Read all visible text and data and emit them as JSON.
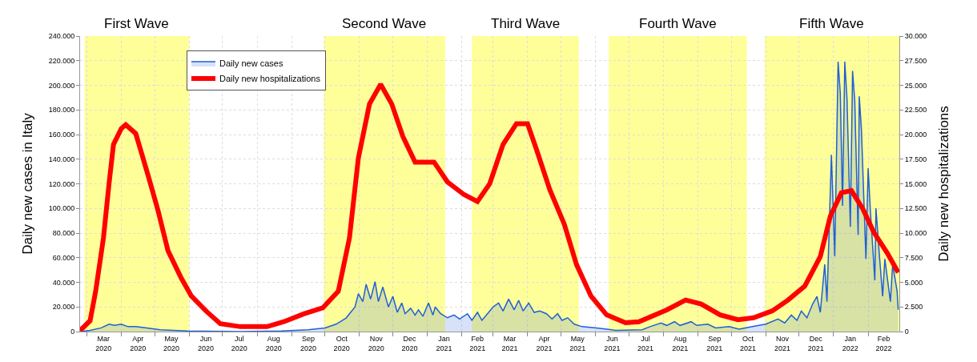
{
  "chart_data": {
    "type": "line",
    "ylabel": "Daily new cases in Italy",
    "y2label": "Daily new hospitalizations",
    "xlim": [
      "2020-02-24",
      "2022-03-01"
    ],
    "xticks": [
      {
        "value": "2020-03-01",
        "label": null
      },
      {
        "value": "2020-03-16",
        "label": "Mar\n2020"
      },
      {
        "value": "2020-04-01",
        "label": null
      },
      {
        "value": "2020-04-16",
        "label": "Apr\n2020"
      },
      {
        "value": "2020-05-01",
        "label": null
      },
      {
        "value": "2020-05-16",
        "label": "May\n2020"
      },
      {
        "value": "2020-06-01",
        "label": null
      },
      {
        "value": "2020-06-16",
        "label": "Jun\n2020"
      },
      {
        "value": "2020-07-01",
        "label": null
      },
      {
        "value": "2020-07-16",
        "label": "Jul\n2020"
      },
      {
        "value": "2020-08-01",
        "label": null
      },
      {
        "value": "2020-08-16",
        "label": "Aug\n2020"
      },
      {
        "value": "2020-09-01",
        "label": null
      },
      {
        "value": "2020-09-16",
        "label": "Sep\n2020"
      },
      {
        "value": "2020-10-01",
        "label": null
      },
      {
        "value": "2020-10-16",
        "label": "Oct\n2020"
      },
      {
        "value": "2020-11-01",
        "label": null
      },
      {
        "value": "2020-11-16",
        "label": "Nov\n2020"
      },
      {
        "value": "2020-12-01",
        "label": null
      },
      {
        "value": "2020-12-16",
        "label": "Dec\n2020"
      },
      {
        "value": "2021-01-01",
        "label": null
      },
      {
        "value": "2021-01-16",
        "label": "Jan\n2021"
      },
      {
        "value": "2021-02-01",
        "label": null
      },
      {
        "value": "2021-02-15",
        "label": "Feb\n2021"
      },
      {
        "value": "2021-03-01",
        "label": null
      },
      {
        "value": "2021-03-16",
        "label": "Mar\n2021"
      },
      {
        "value": "2021-04-01",
        "label": null
      },
      {
        "value": "2021-04-16",
        "label": "Apr\n2021"
      },
      {
        "value": "2021-05-01",
        "label": null
      },
      {
        "value": "2021-05-16",
        "label": "May\n2021"
      },
      {
        "value": "2021-06-01",
        "label": null
      },
      {
        "value": "2021-06-16",
        "label": "Jun\n2021"
      },
      {
        "value": "2021-07-01",
        "label": null
      },
      {
        "value": "2021-07-16",
        "label": "Jul\n2021"
      },
      {
        "value": "2021-08-01",
        "label": null
      },
      {
        "value": "2021-08-16",
        "label": "Aug\n2021"
      },
      {
        "value": "2021-09-01",
        "label": null
      },
      {
        "value": "2021-09-16",
        "label": "Sep\n2021"
      },
      {
        "value": "2021-10-01",
        "label": null
      },
      {
        "value": "2021-10-16",
        "label": "Oct\n2021"
      },
      {
        "value": "2021-11-01",
        "label": null
      },
      {
        "value": "2021-11-16",
        "label": "Nov\n2021"
      },
      {
        "value": "2021-12-01",
        "label": null
      },
      {
        "value": "2021-12-16",
        "label": "Dec\n2021"
      },
      {
        "value": "2022-01-01",
        "label": null
      },
      {
        "value": "2022-01-16",
        "label": "Jan\n2022"
      },
      {
        "value": "2022-02-01",
        "label": null
      },
      {
        "value": "2022-02-15",
        "label": "Feb\n2022"
      }
    ],
    "ylim": [
      0,
      240000
    ],
    "yticks": [
      0,
      {
        "value": 20000,
        "label": "20.000"
      },
      {
        "value": 40000,
        "label": "40.000"
      },
      {
        "value": 60000,
        "label": "60.000"
      },
      {
        "value": 80000,
        "label": "80.000"
      },
      {
        "value": 100000,
        "label": "100.000"
      },
      {
        "value": 120000,
        "label": "120.000"
      },
      {
        "value": 140000,
        "label": "140.000"
      },
      {
        "value": 160000,
        "label": "160.000"
      },
      {
        "value": 180000,
        "label": "180.000"
      },
      {
        "value": 200000,
        "label": "200.000"
      },
      {
        "value": 220000,
        "label": "220.000"
      },
      {
        "value": 240000,
        "label": "240.000"
      }
    ],
    "y2lim": [
      0,
      30000
    ],
    "y2ticks": [
      0,
      {
        "value": 2500,
        "label": "2.500"
      },
      {
        "value": 5000,
        "label": "5.000"
      },
      {
        "value": 7500,
        "label": "7.500"
      },
      {
        "value": 10000,
        "label": "10.000"
      },
      {
        "value": 12500,
        "label": "12.500"
      },
      {
        "value": 15000,
        "label": "15.000"
      },
      {
        "value": 17500,
        "label": "17.500"
      },
      {
        "value": 20000,
        "label": "20.000"
      },
      {
        "value": 22500,
        "label": "22.500"
      },
      {
        "value": 25000,
        "label": "25.000"
      },
      {
        "value": 27500,
        "label": "27.500"
      },
      {
        "value": 30000,
        "label": "30.000"
      }
    ],
    "grid": true,
    "legend": "top left",
    "marker": "none",
    "line_style": "solid",
    "bands": [
      {
        "axis": "x",
        "from": "2020-02-28",
        "to": "2020-06-01",
        "label": "First Wave",
        "color": "#ffff99"
      },
      {
        "axis": "x",
        "from": "2020-09-30",
        "to": "2021-01-17",
        "label": "Second Wave",
        "color": "#ffff99"
      },
      {
        "axis": "x",
        "from": "2021-02-10",
        "to": "2021-05-17",
        "label": "Third Wave",
        "color": "#ffff99"
      },
      {
        "axis": "x",
        "from": "2021-06-13",
        "to": "2021-10-15",
        "label": "Fourth Wave",
        "color": "#ffff99"
      },
      {
        "axis": "x",
        "from": "2021-10-31",
        "to": "2022-03-01",
        "label": "Fifth Wave",
        "color": "#ffff99"
      }
    ],
    "series": [
      {
        "name": "Daily new cases",
        "type": "area",
        "color": "#1f5fd6",
        "x": [
          "2020-02-24",
          "2020-03-04",
          "2020-03-14",
          "2020-03-21",
          "2020-03-26",
          "2020-04-01",
          "2020-04-07",
          "2020-04-14",
          "2020-04-24",
          "2020-05-06",
          "2020-05-30",
          "2020-07-17",
          "2020-08-23",
          "2020-09-16",
          "2020-10-01",
          "2020-10-11",
          "2020-10-20",
          "2020-10-28",
          "2020-10-31",
          "2020-11-04",
          "2020-11-07",
          "2020-11-11",
          "2020-11-15",
          "2020-11-18",
          "2020-11-22",
          "2020-11-27",
          "2020-12-01",
          "2020-12-05",
          "2020-12-09",
          "2020-12-12",
          "2020-12-17",
          "2020-12-21",
          "2020-12-24",
          "2020-12-28",
          "2021-01-02",
          "2021-01-06",
          "2021-01-08",
          "2021-01-13",
          "2021-01-19",
          "2021-01-25",
          "2021-01-30",
          "2021-02-06",
          "2021-02-10",
          "2021-02-15",
          "2021-02-19",
          "2021-02-24",
          "2021-03-01",
          "2021-03-06",
          "2021-03-10",
          "2021-03-15",
          "2021-03-20",
          "2021-03-24",
          "2021-03-28",
          "2021-04-02",
          "2021-04-07",
          "2021-04-12",
          "2021-04-18",
          "2021-04-23",
          "2021-04-28",
          "2021-05-02",
          "2021-05-07",
          "2021-05-13",
          "2021-05-20",
          "2021-06-02",
          "2021-06-19",
          "2021-07-13",
          "2021-07-20",
          "2021-07-30",
          "2021-08-04",
          "2021-08-11",
          "2021-08-16",
          "2021-08-26",
          "2021-08-31",
          "2021-09-10",
          "2021-09-17",
          "2021-09-29",
          "2021-10-08",
          "2021-10-20",
          "2021-11-01",
          "2021-11-12",
          "2021-11-18",
          "2021-11-24",
          "2021-11-29",
          "2021-12-03",
          "2021-12-08",
          "2021-12-13",
          "2021-12-17",
          "2021-12-20",
          "2021-12-24",
          "2021-12-26",
          "2021-12-30",
          "2022-01-02",
          "2022-01-05",
          "2022-01-07",
          "2022-01-09",
          "2022-01-11",
          "2022-01-13",
          "2022-01-16",
          "2022-01-18",
          "2022-01-20",
          "2022-01-23",
          "2022-01-24",
          "2022-01-26",
          "2022-01-30",
          "2022-02-01",
          "2022-02-03",
          "2022-02-07",
          "2022-02-08",
          "2022-02-11",
          "2022-02-14",
          "2022-02-16",
          "2022-02-21",
          "2022-02-23",
          "2022-02-27",
          "2022-02-28"
        ],
        "values": [
          0,
          1000,
          3000,
          6000,
          5000,
          6000,
          4000,
          4000,
          3000,
          1500,
          500,
          0,
          500,
          1500,
          3000,
          6000,
          11000,
          20000,
          30800,
          24300,
          38400,
          26400,
          40500,
          24300,
          36200,
          20000,
          28600,
          15600,
          23200,
          14500,
          18900,
          13400,
          17700,
          12400,
          23200,
          13400,
          20000,
          14500,
          11200,
          13400,
          10200,
          14500,
          9100,
          15600,
          9100,
          14500,
          20000,
          23200,
          16700,
          26400,
          17700,
          25400,
          16700,
          23200,
          15600,
          16700,
          14500,
          10200,
          14500,
          9100,
          11200,
          6000,
          4000,
          3000,
          1000,
          1500,
          4000,
          7000,
          5000,
          8000,
          5000,
          8000,
          5000,
          6000,
          3000,
          4000,
          2000,
          4000,
          6000,
          10200,
          7000,
          13400,
          9100,
          16700,
          11200,
          22100,
          28600,
          15600,
          54600,
          24300,
          143500,
          61100,
          219200,
          193200,
          102200,
          219200,
          189000,
          85000,
          211700,
          186700,
          78500,
          191100,
          163000,
          59000,
          132600,
          98000,
          41600,
          100100,
          63200,
          28600,
          59000,
          24300,
          54600,
          33000,
          17700
        ]
      },
      {
        "name": "Daily new hospitalizations",
        "axis": "y2",
        "color": "#ff0000",
        "x": [
          "2020-02-24",
          "2020-03-04",
          "2020-03-09",
          "2020-03-16",
          "2020-03-21",
          "2020-03-25",
          "2020-04-01",
          "2020-04-05",
          "2020-04-14",
          "2020-04-19",
          "2020-04-26",
          "2020-05-04",
          "2020-05-13",
          "2020-05-25",
          "2020-06-03",
          "2020-06-17",
          "2020-06-29",
          "2020-07-17",
          "2020-08-10",
          "2020-08-25",
          "2020-09-12",
          "2020-09-29",
          "2020-10-13",
          "2020-10-23",
          "2020-10-31",
          "2020-11-10",
          "2020-11-20",
          "2020-11-30",
          "2020-12-10",
          "2020-12-21",
          "2021-01-07",
          "2021-01-19",
          "2021-02-03",
          "2021-02-15",
          "2021-02-26",
          "2021-03-10",
          "2021-03-22",
          "2021-04-01",
          "2021-04-09",
          "2021-04-21",
          "2021-05-04",
          "2021-05-15",
          "2021-05-28",
          "2021-06-11",
          "2021-06-28",
          "2021-07-10",
          "2021-08-04",
          "2021-08-21",
          "2021-09-04",
          "2021-09-21",
          "2021-10-07",
          "2021-10-21",
          "2021-11-07",
          "2021-11-21",
          "2021-12-06",
          "2021-12-20",
          "2021-12-29",
          "2022-01-08",
          "2022-01-17",
          "2022-01-27",
          "2022-02-06",
          "2022-02-18",
          "2022-02-28"
        ],
        "values": [
          100,
          1100,
          4100,
          9500,
          15000,
          19000,
          20600,
          21000,
          20100,
          18200,
          15500,
          12300,
          8200,
          5400,
          3600,
          2000,
          800,
          500,
          500,
          1000,
          1800,
          2400,
          4100,
          9500,
          17600,
          23100,
          25100,
          23100,
          19800,
          17200,
          17200,
          15200,
          13900,
          13200,
          15000,
          19000,
          21100,
          21100,
          18500,
          14400,
          10900,
          6800,
          3600,
          1700,
          900,
          1000,
          2200,
          3200,
          2800,
          1700,
          1200,
          1400,
          2100,
          3200,
          4600,
          7600,
          11700,
          14100,
          14300,
          12500,
          10100,
          8000,
          6000
        ]
      }
    ]
  }
}
